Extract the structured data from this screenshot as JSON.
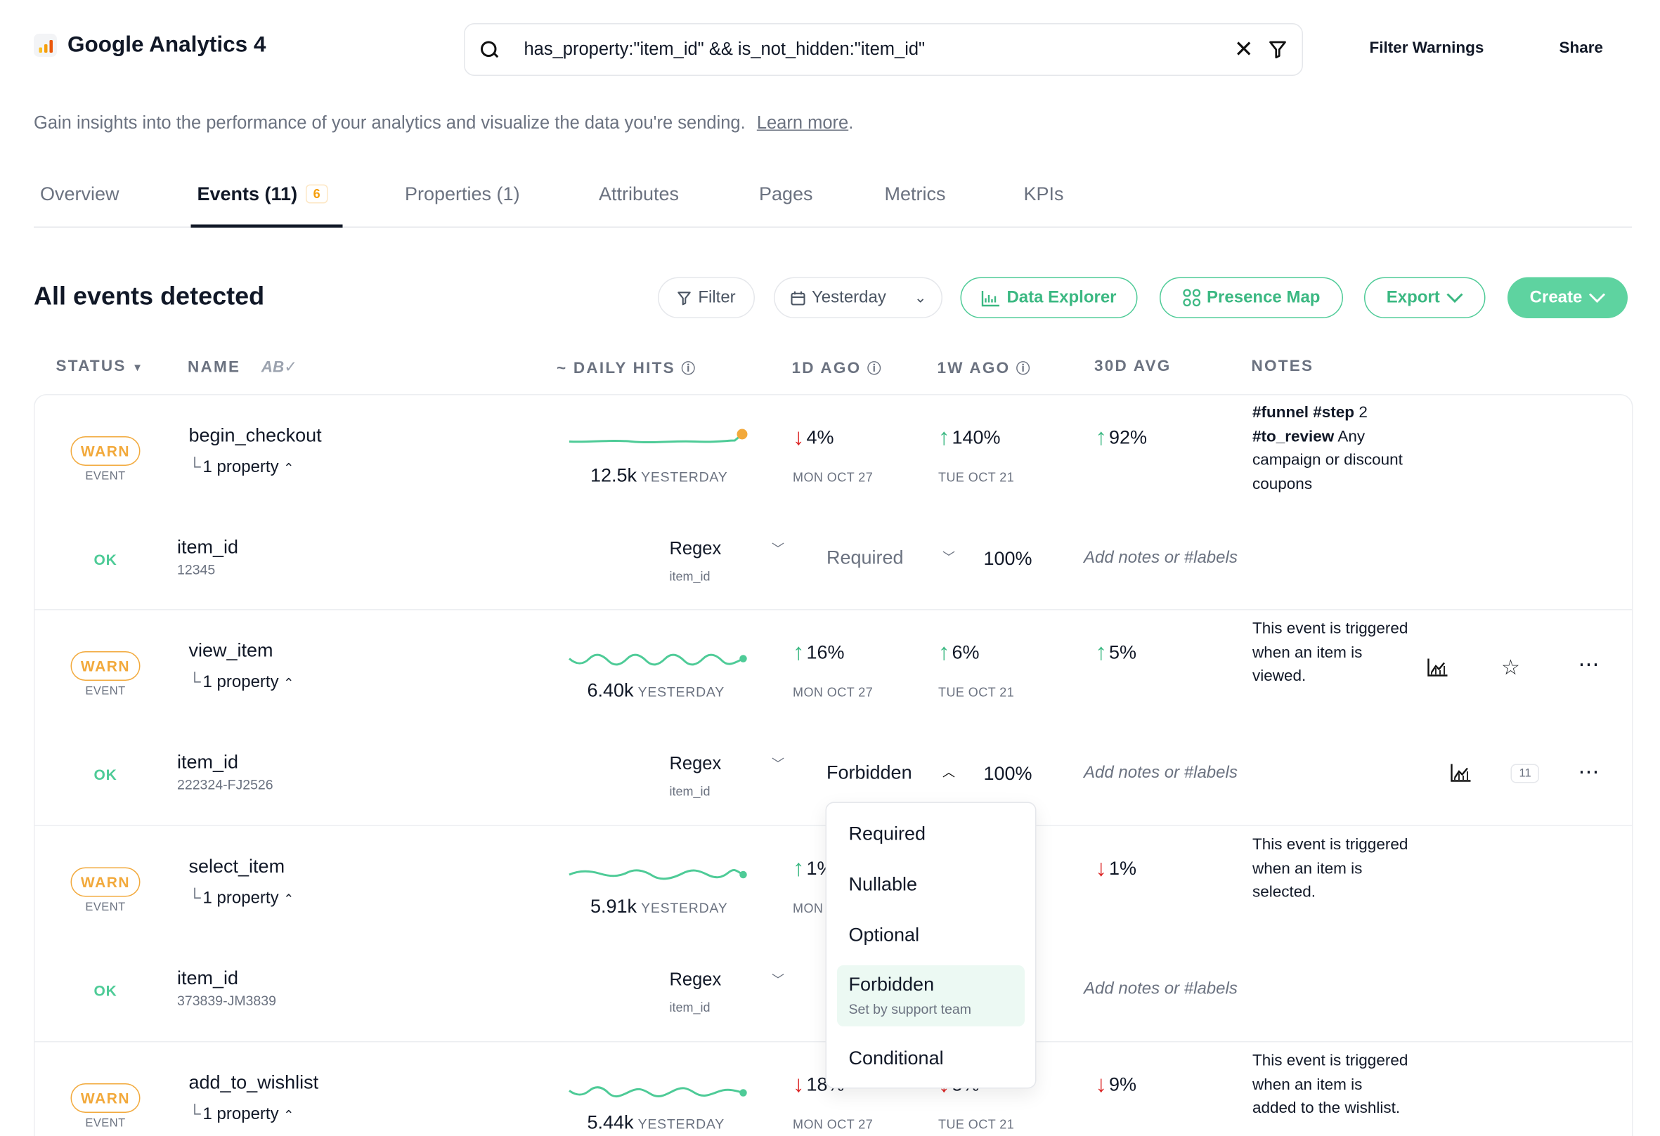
{
  "header": {
    "app_title": "Google Analytics 4",
    "search_value": "has_property:\"item_id\" && is_not_hidden:\"item_id\"",
    "filter_warnings": "Filter Warnings",
    "share": "Share"
  },
  "subtitle": {
    "text": "Gain insights into the performance of your analytics and visualize the data you're sending.",
    "link": "Learn more",
    "suffix": "."
  },
  "tabs": {
    "overview": "Overview",
    "events": "Events (11)",
    "events_badge": "6",
    "properties": "Properties (1)",
    "attributes": "Attributes",
    "pages": "Pages",
    "metrics": "Metrics",
    "kpis": "KPIs"
  },
  "section": {
    "title": "All events detected",
    "filter": "Filter",
    "date": "Yesterday",
    "data_explorer": "Data Explorer",
    "presence_map": "Presence Map",
    "export": "Export",
    "create": "Create"
  },
  "columns": {
    "status": "STATUS",
    "name": "NAME",
    "daily_hits": "~ DAILY HITS",
    "one_day": "1D AGO",
    "one_week": "1W AGO",
    "avg30": "30D AVG",
    "notes": "NOTES"
  },
  "colors": {
    "accent": "#4ecb97",
    "warn": "#f2a93b",
    "down": "#dc2626"
  },
  "events": [
    {
      "status": "WARN",
      "type": "EVENT",
      "name": "begin_checkout",
      "property_count": "1 property",
      "hits": "12.5k",
      "hits_label": "YESTERDAY",
      "d1": "4%",
      "d1_dir": "down",
      "d1_date": "MON OCT 27",
      "w1": "140%",
      "w1_dir": "up",
      "w1_date": "TUE OCT 21",
      "avg": "92%",
      "avg_dir": "up",
      "notes_tag1": "#funnel",
      "notes_tag2": "#step",
      "notes_num": "2",
      "notes_tag3": "#to_review",
      "notes_rest": "Any campaign or discount coupons",
      "prop": {
        "status": "OK",
        "name": "item_id",
        "value": "12345",
        "regex": "Regex",
        "regex_sub": "item_id",
        "presence": "Required",
        "pct": "100%",
        "notes_placeholder": "Add notes or #labels"
      }
    },
    {
      "status": "WARN",
      "type": "EVENT",
      "name": "view_item",
      "property_count": "1 property",
      "hits": "6.40k",
      "hits_label": "YESTERDAY",
      "d1": "16%",
      "d1_dir": "up",
      "d1_date": "MON OCT 27",
      "w1": "6%",
      "w1_dir": "up",
      "w1_date": "TUE OCT 21",
      "avg": "5%",
      "avg_dir": "up",
      "notes": "This event is triggered when an item is viewed.",
      "prop": {
        "status": "OK",
        "name": "item_id",
        "value": "222324-FJ2526",
        "regex": "Regex",
        "regex_sub": "item_id",
        "presence": "Forbidden",
        "pct": "100%",
        "notes_placeholder": "Add notes or #labels",
        "count": "11"
      }
    },
    {
      "status": "WARN",
      "type": "EVENT",
      "name": "select_item",
      "property_count": "1 property",
      "hits": "5.91k",
      "hits_label": "YESTERDAY",
      "d1": "1%",
      "d1_dir": "up",
      "d1_date": "MON",
      "avg": "1%",
      "avg_dir": "down",
      "notes": "This event is triggered when an item is selected.",
      "prop": {
        "status": "OK",
        "name": "item_id",
        "value": "373839-JM3839",
        "regex": "Regex",
        "regex_sub": "item_id",
        "notes_placeholder": "Add notes or #labels"
      }
    },
    {
      "status": "WARN",
      "type": "EVENT",
      "name": "add_to_wishlist",
      "property_count": "1 property",
      "hits": "5.44k",
      "hits_label": "YESTERDAY",
      "d1": "18%",
      "d1_dir": "down",
      "d1_date": "MON OCT 27",
      "w1": "5%",
      "w1_dir": "down",
      "w1_date": "TUE OCT 21",
      "avg": "9%",
      "avg_dir": "down",
      "notes": "This event is triggered when an item is added to the wishlist."
    }
  ],
  "dropdown": {
    "options": [
      "Required",
      "Nullable",
      "Optional",
      "Forbidden",
      "Conditional"
    ],
    "selected_sub": "Set by support team"
  }
}
